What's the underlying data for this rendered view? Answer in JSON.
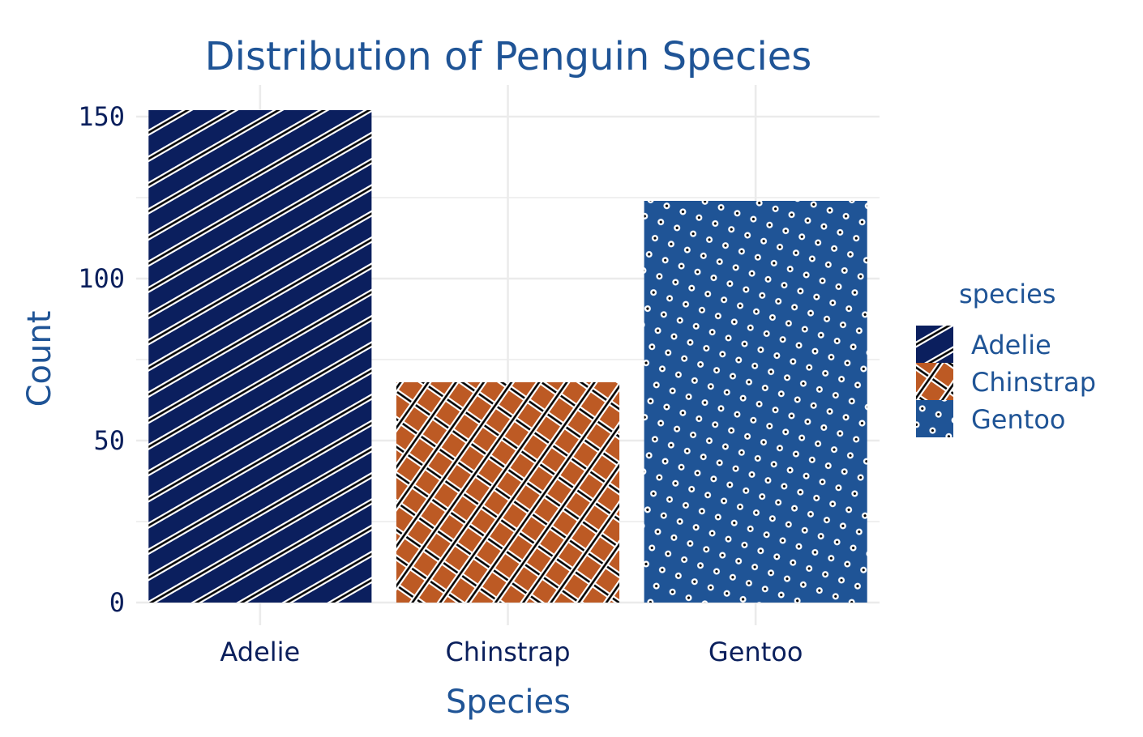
{
  "chart_data": {
    "type": "bar",
    "title": "Distribution of Penguin Species",
    "xlabel": "Species",
    "ylabel": "Count",
    "categories": [
      "Adelie",
      "Chinstrap",
      "Gentoo"
    ],
    "values": [
      152,
      68,
      124
    ],
    "ylim": [
      0,
      160
    ],
    "yticks": [
      0,
      50,
      100,
      150
    ],
    "grid": true,
    "legend": {
      "title": "species",
      "placement": "right",
      "entries": [
        "Adelie",
        "Chinstrap",
        "Gentoo"
      ]
    },
    "colors": {
      "Adelie": "#0B1F5E",
      "Chinstrap": "#BD5A24",
      "Gentoo": "#1F5496"
    },
    "fill_patterns": {
      "Adelie": "stripe",
      "Chinstrap": "crosshatch",
      "Gentoo": "dots"
    }
  }
}
